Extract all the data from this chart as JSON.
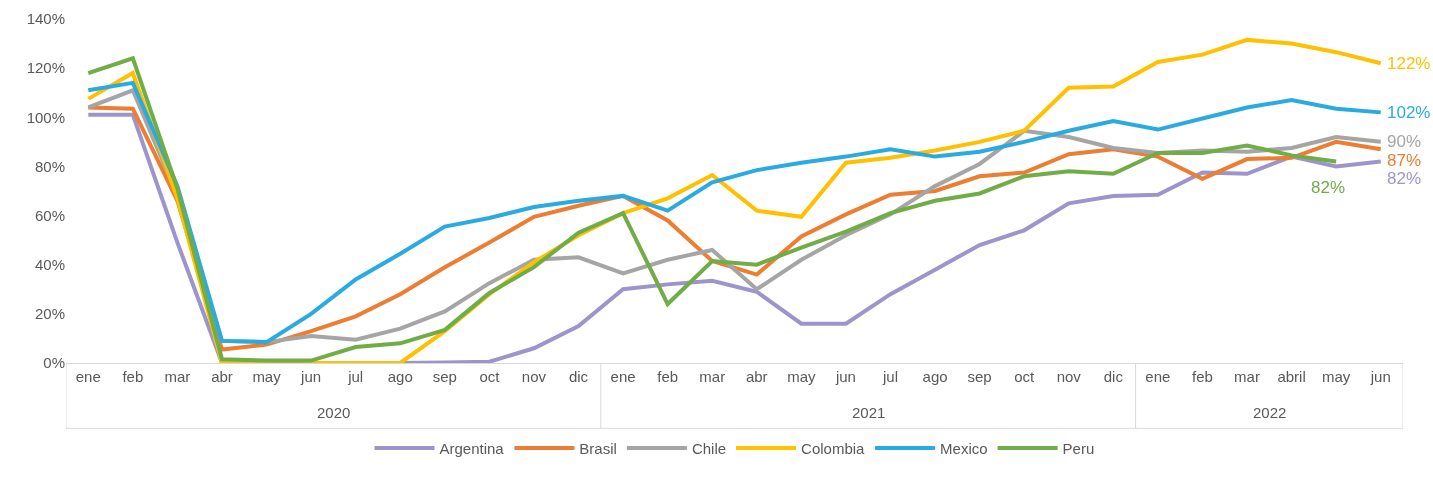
{
  "chart_data": {
    "type": "line",
    "categories": [
      "ene",
      "feb",
      "mar",
      "abr",
      "may",
      "jun",
      "jul",
      "ago",
      "sep",
      "oct",
      "nov",
      "dic",
      "ene",
      "feb",
      "mar",
      "abr",
      "may",
      "jun",
      "jul",
      "ago",
      "sep",
      "oct",
      "nov",
      "dic",
      "ene",
      "feb",
      "mar",
      "abril",
      "may",
      "jun"
    ],
    "annotations": [
      "2020",
      "2021",
      "2022"
    ],
    "ylim": [
      0,
      140
    ],
    "yticks": [
      {
        "value": 0,
        "label": "0%"
      },
      {
        "value": 20,
        "label": "20%"
      },
      {
        "value": 40,
        "label": "40%"
      },
      {
        "value": 60,
        "label": "60%"
      },
      {
        "value": 80,
        "label": "80%"
      },
      {
        "value": 100,
        "label": "100%"
      },
      {
        "value": 120,
        "label": "120%"
      },
      {
        "value": 140,
        "label": "140%"
      }
    ],
    "grid": false,
    "legend": "bottom",
    "marker": "none",
    "line_style": "solid",
    "series": [
      {
        "name": "Argentina",
        "color": "#9e94cc",
        "values": [
          101,
          101,
          49,
          0,
          0,
          0,
          0,
          0,
          0.2,
          0.5,
          6,
          15,
          30,
          32,
          33.5,
          29,
          16,
          16,
          28,
          38,
          48,
          54,
          65,
          68,
          68.5,
          77.5,
          77,
          84,
          80,
          82
        ],
        "value_labels": [
          null,
          null,
          null,
          null,
          null,
          null,
          null,
          null,
          null,
          null,
          null,
          null,
          null,
          null,
          null,
          null,
          null,
          null,
          null,
          null,
          null,
          null,
          null,
          null,
          null,
          null,
          null,
          null,
          null,
          "82%"
        ]
      },
      {
        "name": "Brasil",
        "color": "#ed7d31",
        "values": [
          104,
          103.5,
          66,
          5.5,
          7.5,
          13,
          19,
          28,
          39,
          49,
          59.5,
          64,
          68,
          58,
          41.5,
          36,
          51.5,
          60.5,
          68.5,
          70,
          76,
          77.5,
          85,
          87,
          84,
          75,
          83,
          83.5,
          90,
          87
        ],
        "value_labels": [
          null,
          null,
          null,
          null,
          null,
          null,
          null,
          null,
          null,
          null,
          null,
          null,
          null,
          null,
          null,
          null,
          null,
          null,
          null,
          null,
          null,
          null,
          null,
          null,
          null,
          null,
          null,
          null,
          null,
          "87%"
        ]
      },
      {
        "name": "Chile",
        "color": "#a5a5a5",
        "values": [
          104,
          111,
          68,
          9,
          8.5,
          11,
          9.5,
          14,
          21,
          32.5,
          42,
          43,
          36.5,
          42,
          46,
          30,
          42,
          52,
          60.5,
          72,
          81,
          94.5,
          92,
          87.5,
          85.5,
          86.5,
          86,
          87.5,
          92,
          90
        ],
        "value_labels": [
          null,
          null,
          null,
          null,
          null,
          null,
          null,
          null,
          null,
          null,
          null,
          null,
          null,
          null,
          null,
          null,
          null,
          null,
          null,
          null,
          null,
          null,
          null,
          null,
          null,
          null,
          null,
          null,
          null,
          "90%"
        ]
      },
      {
        "name": "Colombia",
        "color": "#ffc000",
        "values": [
          107.5,
          118,
          67,
          0,
          0,
          0,
          0,
          0,
          13,
          28,
          41,
          52,
          61,
          67,
          76.5,
          62,
          59.5,
          81.5,
          83.5,
          86.5,
          90,
          94.5,
          112,
          112.5,
          122.5,
          125.5,
          131.5,
          130,
          126.5,
          122
        ],
        "value_labels": [
          null,
          null,
          null,
          null,
          null,
          null,
          null,
          null,
          null,
          null,
          null,
          null,
          null,
          null,
          null,
          null,
          null,
          null,
          null,
          null,
          null,
          null,
          null,
          null,
          null,
          null,
          null,
          null,
          null,
          "122%"
        ]
      },
      {
        "name": "Mexico",
        "color": "#29abe2",
        "values": [
          111,
          114,
          72,
          9,
          8.5,
          20,
          34,
          44.5,
          55.5,
          59,
          63.5,
          66,
          68,
          62,
          73.5,
          78.5,
          81.5,
          84,
          87,
          84,
          86,
          90,
          94.5,
          98.5,
          95,
          99.5,
          104,
          107,
          103.5,
          102
        ],
        "value_labels": [
          null,
          null,
          null,
          null,
          null,
          null,
          null,
          null,
          null,
          null,
          null,
          null,
          null,
          null,
          null,
          null,
          null,
          null,
          null,
          null,
          null,
          null,
          null,
          null,
          null,
          null,
          null,
          null,
          null,
          "102%"
        ]
      },
      {
        "name": "Peru",
        "color": "#70ad47",
        "values": [
          118,
          124,
          71,
          1.5,
          1,
          1,
          6.5,
          8,
          13.5,
          28.5,
          39,
          53,
          61,
          24,
          41.5,
          40,
          47,
          53.5,
          61,
          66,
          69,
          76,
          78,
          77,
          85.5,
          85.5,
          88.5,
          84.5,
          82,
          null
        ],
        "value_labels": [
          null,
          null,
          null,
          null,
          null,
          null,
          null,
          null,
          null,
          null,
          null,
          null,
          null,
          null,
          null,
          null,
          null,
          null,
          null,
          null,
          null,
          null,
          null,
          null,
          null,
          null,
          null,
          null,
          "82%",
          null
        ]
      }
    ]
  }
}
